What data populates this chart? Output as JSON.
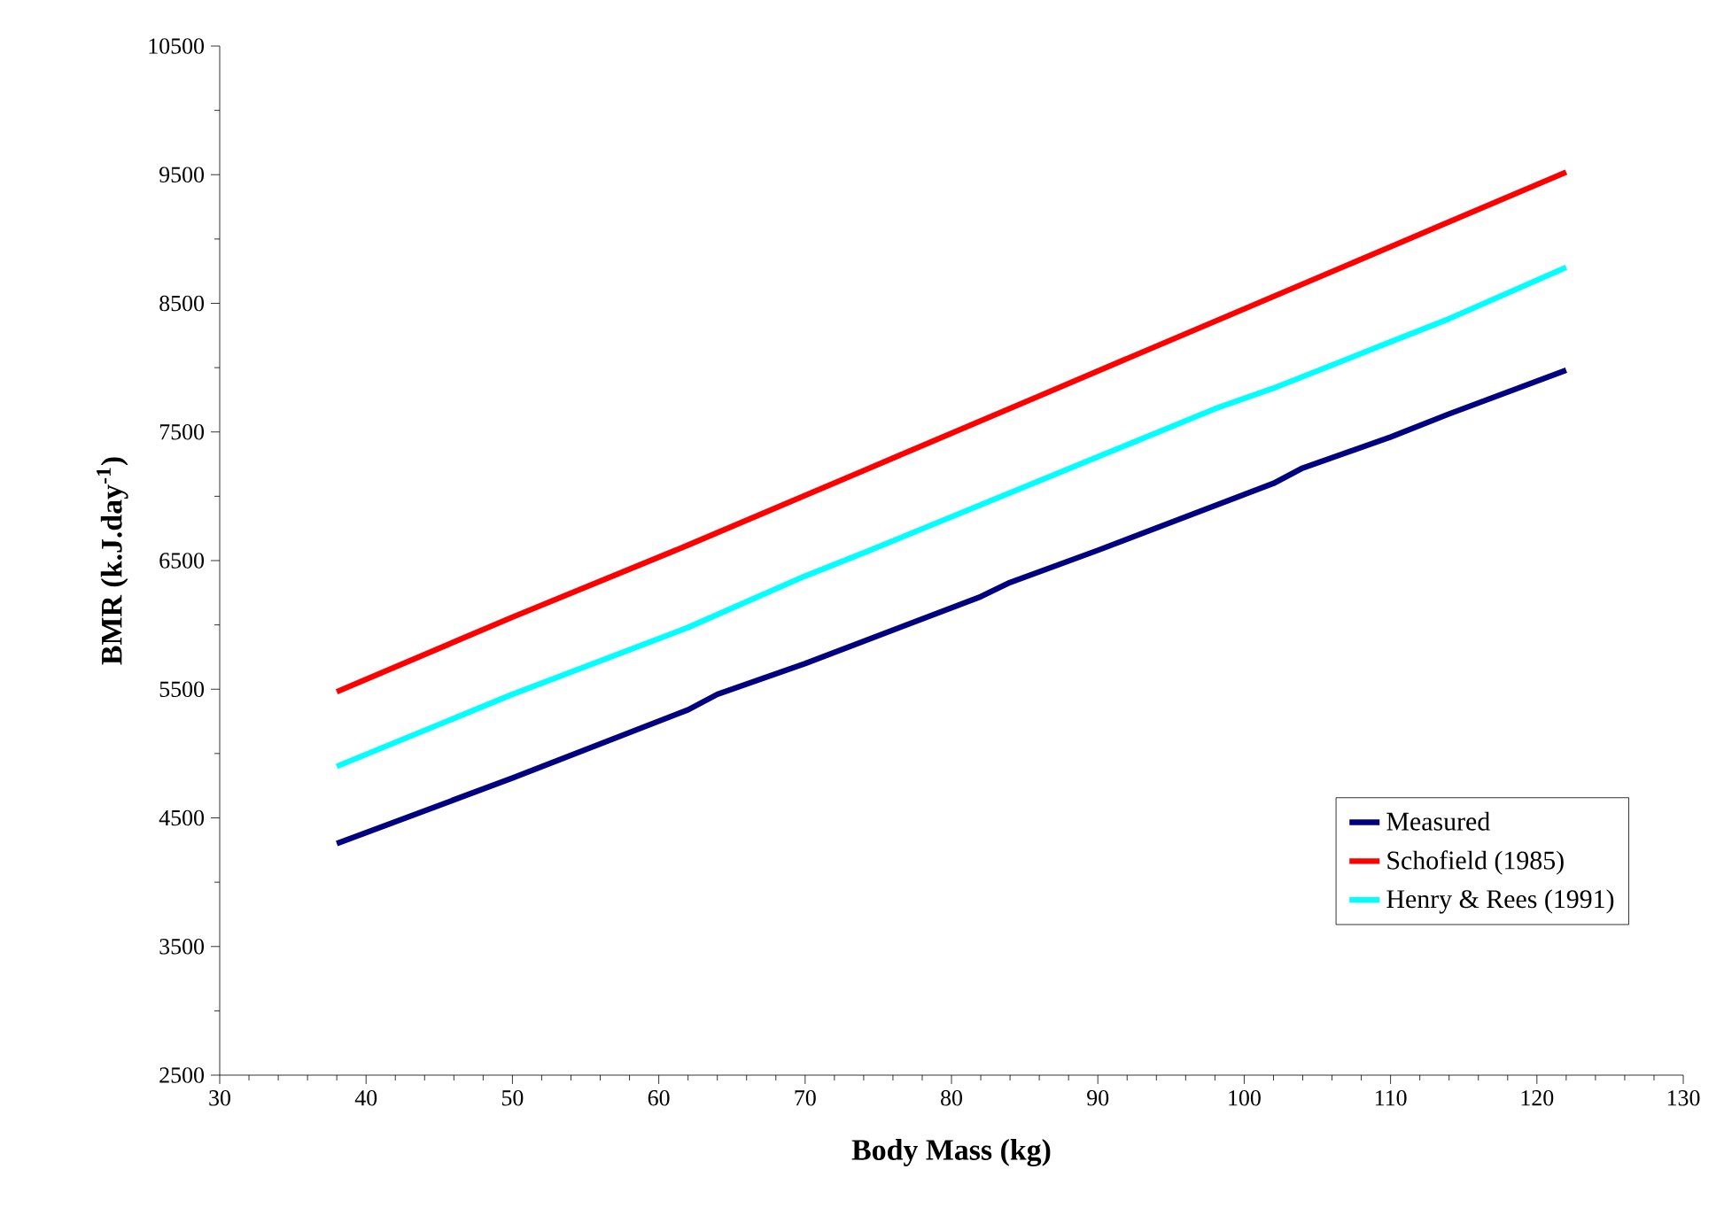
{
  "chart_data": {
    "type": "line",
    "xlabel": "Body Mass (kg)",
    "ylabel": "BMR (k.J.day$^{-1}$)",
    "xlim": [
      30,
      130
    ],
    "ylim": [
      2500,
      10500
    ],
    "xticks": [
      30,
      40,
      50,
      60,
      70,
      80,
      90,
      100,
      110,
      120,
      130
    ],
    "yticks": [
      2500,
      3500,
      4500,
      5500,
      6500,
      7500,
      8500,
      9500,
      10500
    ],
    "legend": "bottom right",
    "grid": false,
    "marker": "none",
    "line_style": "solid",
    "series": [
      {
        "name": "Measured",
        "color": "#000080",
        "x": [
          38,
          50,
          62,
          64,
          70,
          82,
          84,
          90,
          102,
          104,
          110,
          114,
          122
        ],
        "values": [
          4300,
          4810,
          5340,
          5460,
          5700,
          6220,
          6330,
          6580,
          7100,
          7220,
          7460,
          7640,
          7980
        ]
      },
      {
        "name": "Schofield (1985)",
        "color": "#ff0000",
        "x": [
          38,
          50,
          62,
          74,
          86,
          98,
          110,
          122
        ],
        "values": [
          5480,
          6060,
          6620,
          7200,
          7780,
          8360,
          8940,
          9520
        ]
      },
      {
        "name": "Henry & Rees (1991)",
        "color": "#00ffff",
        "x": [
          38,
          50,
          62,
          70,
          74,
          86,
          98,
          102,
          110,
          114,
          122
        ],
        "values": [
          4900,
          5460,
          5980,
          6380,
          6560,
          7120,
          7680,
          7840,
          8200,
          8380,
          8780
        ]
      }
    ]
  }
}
